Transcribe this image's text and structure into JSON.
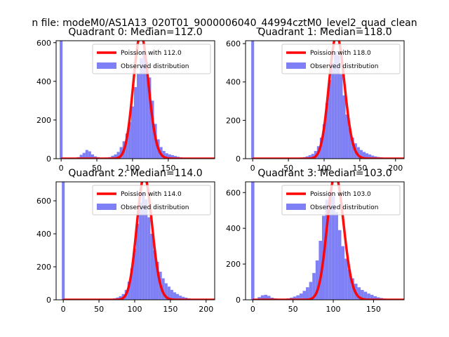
{
  "figure": {
    "suptitle": "n file: modeM0/AS1A13_020T01_9000006040_44994cztM0_level2_quad_clean"
  },
  "chart_data": [
    {
      "type": "bar",
      "title": "Quadrant 0: Median=112.0",
      "xlim": [
        -7,
        215
      ],
      "ylim": [
        0,
        610
      ],
      "xticks": [
        0,
        50,
        100,
        150
      ],
      "yticks": [
        0,
        200,
        400,
        600
      ],
      "bin_width": 4,
      "spike": {
        "x": 0,
        "value": 610
      },
      "hist_x": [
        24,
        28,
        32,
        36,
        40,
        44,
        48,
        52,
        56,
        60,
        64,
        68,
        72,
        76,
        80,
        84,
        88,
        92,
        96,
        100,
        104,
        108,
        112,
        116,
        120,
        124,
        128,
        132,
        136,
        140,
        144,
        148,
        152,
        156,
        160,
        164,
        168,
        172,
        176,
        180,
        184,
        188,
        192,
        196,
        200
      ],
      "hist_y": [
        8,
        20,
        30,
        45,
        38,
        22,
        12,
        8,
        5,
        5,
        6,
        8,
        15,
        22,
        35,
        60,
        90,
        130,
        190,
        270,
        370,
        440,
        520,
        560,
        500,
        420,
        300,
        180,
        100,
        60,
        40,
        28,
        22,
        18,
        14,
        10,
        7,
        5,
        4,
        3,
        2,
        2,
        1,
        1,
        1
      ],
      "poisson_mu": 112,
      "legend": [
        "Poission with 112.0",
        "Observed distribution"
      ],
      "colors": {
        "poisson": "#ff0000",
        "observed": "#7f7ff6"
      }
    },
    {
      "type": "bar",
      "title": "Quadrant 1: Median=118.0",
      "xlim": [
        -10,
        212
      ],
      "ylim": [
        0,
        615
      ],
      "xticks": [
        0,
        50,
        100,
        150,
        200
      ],
      "yticks": [
        0,
        200,
        400,
        600
      ],
      "bin_width": 4,
      "spike": {
        "x": 0,
        "value": 615
      },
      "hist_x": [
        60,
        64,
        68,
        72,
        76,
        80,
        84,
        88,
        92,
        96,
        100,
        104,
        108,
        112,
        116,
        120,
        124,
        128,
        132,
        136,
        140,
        144,
        148,
        152,
        156,
        160,
        164,
        168,
        172,
        176,
        180,
        184,
        188,
        192,
        196,
        200,
        204
      ],
      "hist_y": [
        3,
        4,
        6,
        8,
        12,
        18,
        25,
        40,
        65,
        110,
        180,
        290,
        410,
        500,
        560,
        540,
        440,
        330,
        230,
        160,
        110,
        80,
        60,
        45,
        35,
        28,
        22,
        16,
        12,
        9,
        7,
        5,
        4,
        3,
        2,
        2,
        1
      ],
      "poisson_mu": 118,
      "legend": [
        "Poission with 118.0",
        "Observed distribution"
      ],
      "colors": {
        "poisson": "#ff0000",
        "observed": "#7f7ff6"
      }
    },
    {
      "type": "bar",
      "title": "Quadrant 2: Median=114.0",
      "xlim": [
        -10,
        212
      ],
      "ylim": [
        0,
        715
      ],
      "xticks": [
        0,
        50,
        100,
        150,
        200
      ],
      "yticks": [
        0,
        200,
        400,
        600
      ],
      "bin_width": 4,
      "spike": {
        "x": 0,
        "value": 715
      },
      "hist_x": [
        60,
        64,
        68,
        72,
        76,
        80,
        84,
        88,
        92,
        96,
        100,
        104,
        108,
        112,
        116,
        120,
        124,
        128,
        132,
        136,
        140,
        144,
        148,
        152,
        156,
        160,
        164,
        168,
        172,
        176,
        180,
        184,
        188,
        192,
        196,
        200
      ],
      "hist_y": [
        3,
        4,
        6,
        9,
        14,
        22,
        35,
        60,
        110,
        190,
        310,
        460,
        590,
        650,
        610,
        500,
        400,
        300,
        230,
        170,
        130,
        100,
        80,
        60,
        45,
        35,
        25,
        18,
        13,
        9,
        6,
        4,
        3,
        2,
        1,
        1
      ],
      "poisson_mu": 114,
      "legend": [
        "Poission with 114.0",
        "Observed distribution"
      ],
      "colors": {
        "poisson": "#ff0000",
        "observed": "#7f7ff6"
      }
    },
    {
      "type": "bar",
      "title": "Quadrant 3: Median=103.0",
      "xlim": [
        -9,
        188
      ],
      "ylim": [
        0,
        660
      ],
      "xticks": [
        0,
        50,
        100,
        150
      ],
      "yticks": [
        0,
        200,
        400,
        600
      ],
      "bin_width": 4,
      "spike": {
        "x": 0,
        "value": 660
      },
      "hist_x": [
        8,
        12,
        16,
        20,
        24,
        28,
        32,
        36,
        40,
        44,
        48,
        52,
        56,
        60,
        64,
        68,
        72,
        76,
        80,
        84,
        88,
        92,
        96,
        100,
        104,
        108,
        112,
        116,
        120,
        124,
        128,
        132,
        136,
        140,
        144,
        148,
        152,
        156,
        160,
        164,
        168,
        172,
        176
      ],
      "hist_y": [
        15,
        25,
        28,
        22,
        12,
        8,
        6,
        5,
        6,
        8,
        12,
        18,
        25,
        35,
        50,
        70,
        100,
        150,
        220,
        330,
        470,
        560,
        610,
        580,
        490,
        390,
        300,
        230,
        170,
        120,
        90,
        70,
        55,
        45,
        35,
        28,
        20,
        14,
        10,
        7,
        5,
        3,
        2
      ],
      "poisson_mu": 103,
      "legend": [
        "Poission with 103.0",
        "Observed distribution"
      ],
      "colors": {
        "poisson": "#ff0000",
        "observed": "#7f7ff6"
      }
    }
  ]
}
